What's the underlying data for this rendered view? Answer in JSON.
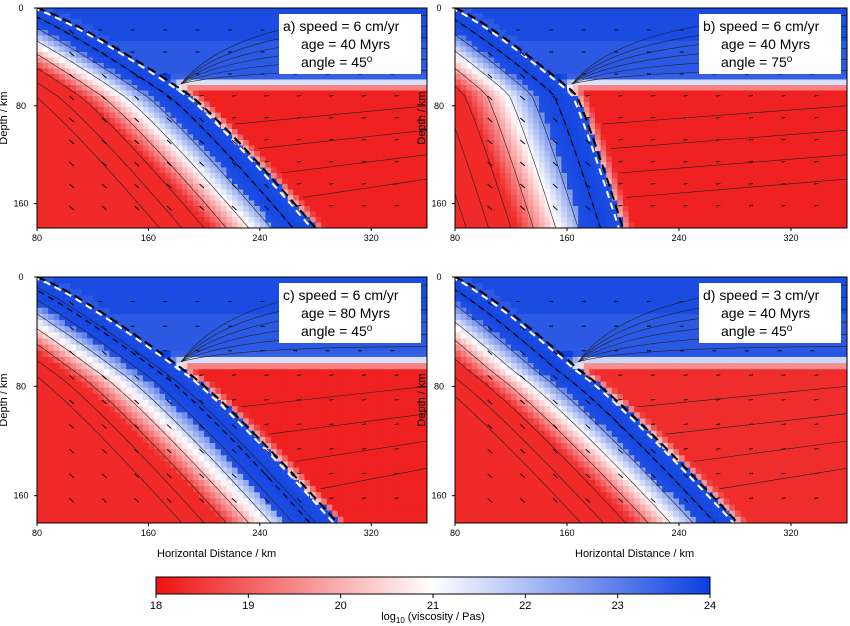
{
  "chart_data": {
    "type": "heatmap",
    "colormap": {
      "low_color": "#ee1111",
      "mid_color": "#ffffff",
      "high_color": "#0b3fe0",
      "range": [
        18,
        24
      ],
      "ticks": [
        "18",
        "19",
        "20",
        "21",
        "22",
        "23",
        "24"
      ],
      "label_prefix": "log",
      "label_sub": "10",
      "label_suffix": "(viscosity / Pas)"
    },
    "x_range": [
      80,
      360
    ],
    "y_range": [
      0,
      180
    ],
    "x_ticks": [
      "80",
      "160",
      "240",
      "320"
    ],
    "y_ticks": [
      "0",
      "80",
      "160"
    ],
    "xlabel": "Horizontal Distance / km",
    "ylabel": "Depth / km",
    "grid": false,
    "panels": [
      {
        "id": "a",
        "lines": [
          "a) speed = 6 cm/yr",
          "age = 40 Myrs",
          "angle = 45"
        ],
        "degree_mark": "o",
        "speed_cm_yr": 6,
        "age_myrs": 40,
        "angle_deg": 45
      },
      {
        "id": "b",
        "lines": [
          "b) speed = 6 cm/yr",
          "age = 40 Myrs",
          "angle = 75"
        ],
        "degree_mark": "o",
        "speed_cm_yr": 6,
        "age_myrs": 40,
        "angle_deg": 75
      },
      {
        "id": "c",
        "lines": [
          "c) speed = 6 cm/yr",
          "age = 80 Myrs",
          "angle = 45"
        ],
        "degree_mark": "o",
        "speed_cm_yr": 6,
        "age_myrs": 80,
        "angle_deg": 45
      },
      {
        "id": "d",
        "lines": [
          "d) speed = 3 cm/yr",
          "age = 40 Myrs",
          "angle = 45"
        ],
        "degree_mark": "o",
        "speed_cm_yr": 3,
        "age_myrs": 40,
        "angle_deg": 45
      }
    ]
  }
}
